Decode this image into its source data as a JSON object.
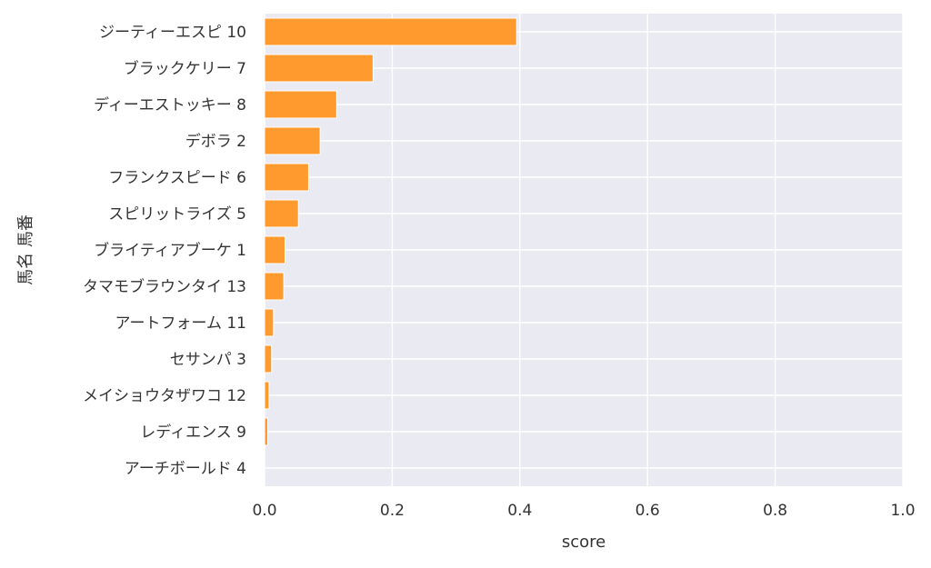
{
  "chart_data": {
    "type": "bar",
    "orientation": "horizontal",
    "xlabel": "score",
    "ylabel": "馬名 馬番",
    "xlim": [
      0.0,
      1.0
    ],
    "xticks": [
      "0.0",
      "0.2",
      "0.4",
      "0.6",
      "0.8",
      "1.0"
    ],
    "grid": true,
    "bar_color": "#ff9a2e",
    "plot_background": "#eaeaf2",
    "categories": [
      "ジーティーエスピ 10",
      "ブラックケリー 7",
      "ディーエストッキー 8",
      "デボラ 2",
      "フランクスピード 6",
      "スピリットライズ 5",
      "ブライティアブーケ 1",
      "タマモブラウンタイ 13",
      "アートフォーム 11",
      "セサンパ 3",
      "メイショウタザワコ 12",
      "レディエンス 9",
      "アーチボールド 4"
    ],
    "values": [
      0.395,
      0.17,
      0.113,
      0.087,
      0.069,
      0.053,
      0.032,
      0.03,
      0.014,
      0.011,
      0.007,
      0.005,
      0.0
    ]
  }
}
